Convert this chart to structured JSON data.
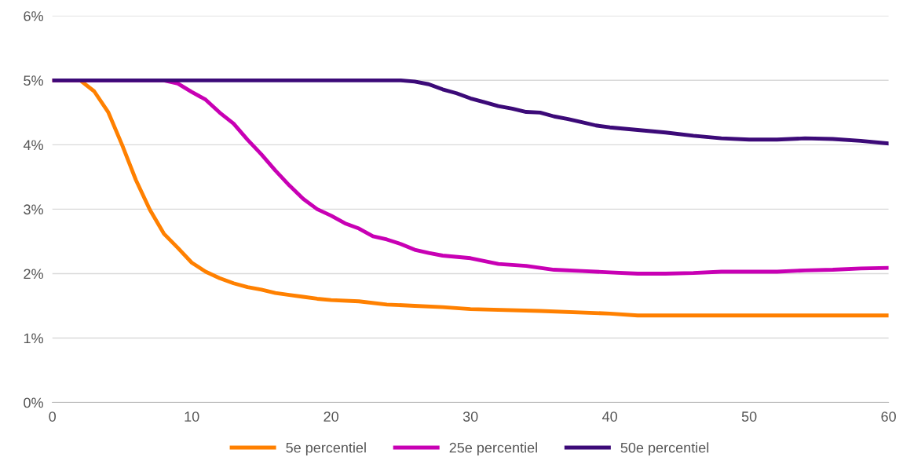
{
  "chart_data": {
    "type": "line",
    "xlim": [
      0,
      60
    ],
    "xticks": [
      0,
      10,
      20,
      30,
      40,
      50,
      60
    ],
    "ylim": [
      0,
      6
    ],
    "yticks": [
      {
        "value": 0,
        "label": "0%"
      },
      {
        "value": 1,
        "label": "1%"
      },
      {
        "value": 2,
        "label": "2%"
      },
      {
        "value": 3,
        "label": "3%"
      },
      {
        "value": 4,
        "label": "4%"
      },
      {
        "value": 5,
        "label": "5%"
      },
      {
        "value": 6,
        "label": "6%"
      }
    ],
    "grid": "y",
    "legend": "bottom",
    "marker": "none",
    "line_style": "solid",
    "series": [
      {
        "name": "5e percentiel",
        "color": "#ff8000",
        "x": [
          0,
          2,
          3,
          4,
          5,
          6,
          7,
          8,
          9,
          10,
          11,
          12,
          13,
          14,
          15,
          16,
          17,
          18,
          19,
          20,
          22,
          24,
          26,
          28,
          30,
          35,
          40,
          42,
          45,
          50,
          55,
          60
        ],
        "values": [
          5,
          5,
          4.83,
          4.51,
          4.0,
          3.45,
          2.99,
          2.62,
          2.4,
          2.17,
          2.03,
          1.93,
          1.85,
          1.79,
          1.75,
          1.7,
          1.67,
          1.64,
          1.61,
          1.59,
          1.57,
          1.52,
          1.5,
          1.48,
          1.45,
          1.42,
          1.38,
          1.35,
          1.35,
          1.35,
          1.35,
          1.35
        ]
      },
      {
        "name": "25e percentiel",
        "color": "#c800b4",
        "x": [
          0,
          8,
          9,
          10,
          11,
          12,
          13,
          14,
          15,
          16,
          17,
          18,
          19,
          20,
          21,
          22,
          23,
          24,
          25,
          26,
          27,
          28,
          30,
          32,
          34,
          36,
          38,
          40,
          42,
          44,
          46,
          48,
          50,
          52,
          54,
          56,
          58,
          60
        ],
        "values": [
          5,
          5,
          4.95,
          4.82,
          4.7,
          4.5,
          4.33,
          4.08,
          3.85,
          3.6,
          3.37,
          3.16,
          3.0,
          2.9,
          2.78,
          2.7,
          2.58,
          2.53,
          2.46,
          2.37,
          2.32,
          2.28,
          2.24,
          2.15,
          2.12,
          2.06,
          2.04,
          2.02,
          2.0,
          2.0,
          2.01,
          2.03,
          2.03,
          2.03,
          2.05,
          2.06,
          2.08,
          2.09
        ]
      },
      {
        "name": "50e percentiel",
        "color": "#3c0a78",
        "x": [
          0,
          25,
          26,
          27,
          28,
          29,
          30,
          31,
          32,
          33,
          34,
          35,
          36,
          37,
          38,
          39,
          40,
          42,
          44,
          46,
          48,
          50,
          52,
          54,
          56,
          58,
          60
        ],
        "values": [
          5,
          5,
          4.98,
          4.94,
          4.86,
          4.8,
          4.72,
          4.66,
          4.6,
          4.56,
          4.51,
          4.5,
          4.44,
          4.4,
          4.35,
          4.3,
          4.27,
          4.23,
          4.19,
          4.14,
          4.1,
          4.08,
          4.08,
          4.1,
          4.09,
          4.06,
          4.02
        ]
      }
    ]
  }
}
